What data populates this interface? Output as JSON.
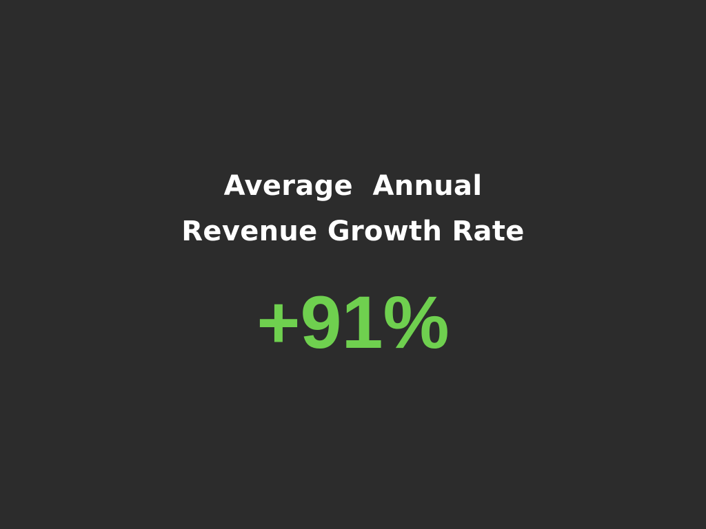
{
  "stat": {
    "title_line1": "Average  Annual",
    "title_line2": "Revenue Growth Rate",
    "value": "+91%",
    "value_color": "#6fd04f",
    "background_color": "#2c2c2c",
    "text_color": "#ffffff"
  }
}
